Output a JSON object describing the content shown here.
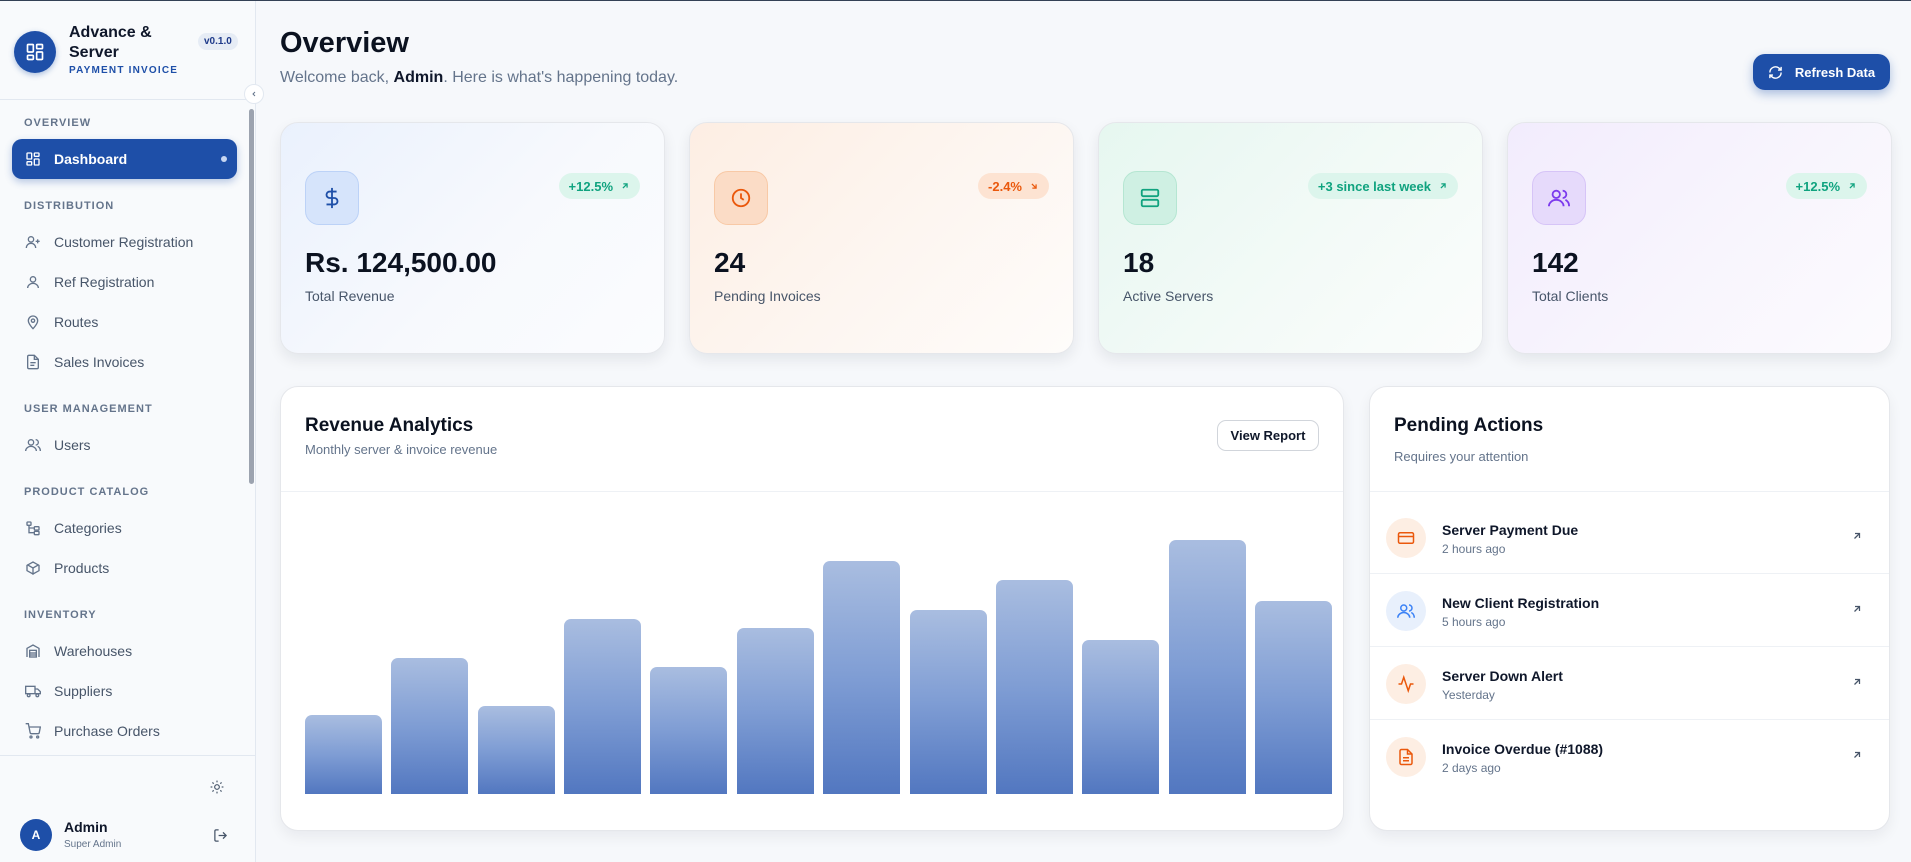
{
  "brand": {
    "title": "Advance & Server",
    "subtitle": "PAYMENT INVOICE",
    "version": "v0.1.0",
    "logo_icon": "dashboard-grid-icon"
  },
  "sidebar": {
    "sections": [
      {
        "label": "OVERVIEW"
      },
      {
        "label": "DISTRIBUTION"
      },
      {
        "label": "USER MANAGEMENT"
      },
      {
        "label": "PRODUCT CATALOG"
      },
      {
        "label": "INVENTORY"
      }
    ],
    "items": [
      {
        "label": "Dashboard",
        "icon": "dashboard-icon",
        "active": true
      },
      {
        "label": "Customer Registration",
        "icon": "user-plus-icon"
      },
      {
        "label": "Ref Registration",
        "icon": "user-icon"
      },
      {
        "label": "Routes",
        "icon": "map-pin-icon"
      },
      {
        "label": "Sales Invoices",
        "icon": "file-icon"
      },
      {
        "label": "Users",
        "icon": "users-icon"
      },
      {
        "label": "Categories",
        "icon": "categories-icon"
      },
      {
        "label": "Products",
        "icon": "package-icon"
      },
      {
        "label": "Warehouses",
        "icon": "warehouse-icon"
      },
      {
        "label": "Suppliers",
        "icon": "truck-icon"
      },
      {
        "label": "Purchase Orders",
        "icon": "cart-icon"
      }
    ]
  },
  "user": {
    "initial": "A",
    "name": "Admin",
    "role": "Super Admin"
  },
  "header": {
    "title": "Overview",
    "welcome_prefix": "Welcome back, ",
    "welcome_name": "Admin",
    "welcome_suffix": ". Here is what's happening today.",
    "refresh_label": "Refresh Data"
  },
  "stats": [
    {
      "value": "Rs. 124,500.00",
      "label": "Total Revenue",
      "badge": "+12.5%",
      "trend": "up",
      "icon": "dollar-icon"
    },
    {
      "value": "24",
      "label": "Pending Invoices",
      "badge": "-2.4%",
      "trend": "down",
      "icon": "clock-icon"
    },
    {
      "value": "18",
      "label": "Active Servers",
      "badge": "+3 since last week",
      "trend": "up",
      "icon": "server-icon"
    },
    {
      "value": "142",
      "label": "Total Clients",
      "badge": "+12.5%",
      "trend": "up",
      "icon": "users-icon"
    }
  ],
  "revenue": {
    "title": "Revenue Analytics",
    "subtitle": "Monthly server & invoice revenue",
    "view_report_label": "View Report"
  },
  "chart_data": {
    "type": "bar",
    "values": [
      26,
      45,
      29,
      58,
      42,
      55,
      77,
      61,
      71,
      51,
      84,
      64
    ],
    "ylim": [
      0,
      100
    ],
    "grid": false,
    "color": "#5277c0"
  },
  "pending": {
    "title": "Pending Actions",
    "subtitle": "Requires your attention",
    "items": [
      {
        "title": "Server Payment Due",
        "time": "2 hours ago",
        "icon": "credit-card-icon",
        "tone": "orange"
      },
      {
        "title": "New Client Registration",
        "time": "5 hours ago",
        "icon": "users-icon",
        "tone": "blue"
      },
      {
        "title": "Server Down Alert",
        "time": "Yesterday",
        "icon": "activity-icon",
        "tone": "orange"
      },
      {
        "title": "Invoice Overdue (#1088)",
        "time": "2 days ago",
        "icon": "file-text-icon",
        "tone": "orange"
      }
    ]
  },
  "colors": {
    "primary": "#1e4fa8",
    "positive": "#10a37f",
    "negative": "#ea580c"
  }
}
